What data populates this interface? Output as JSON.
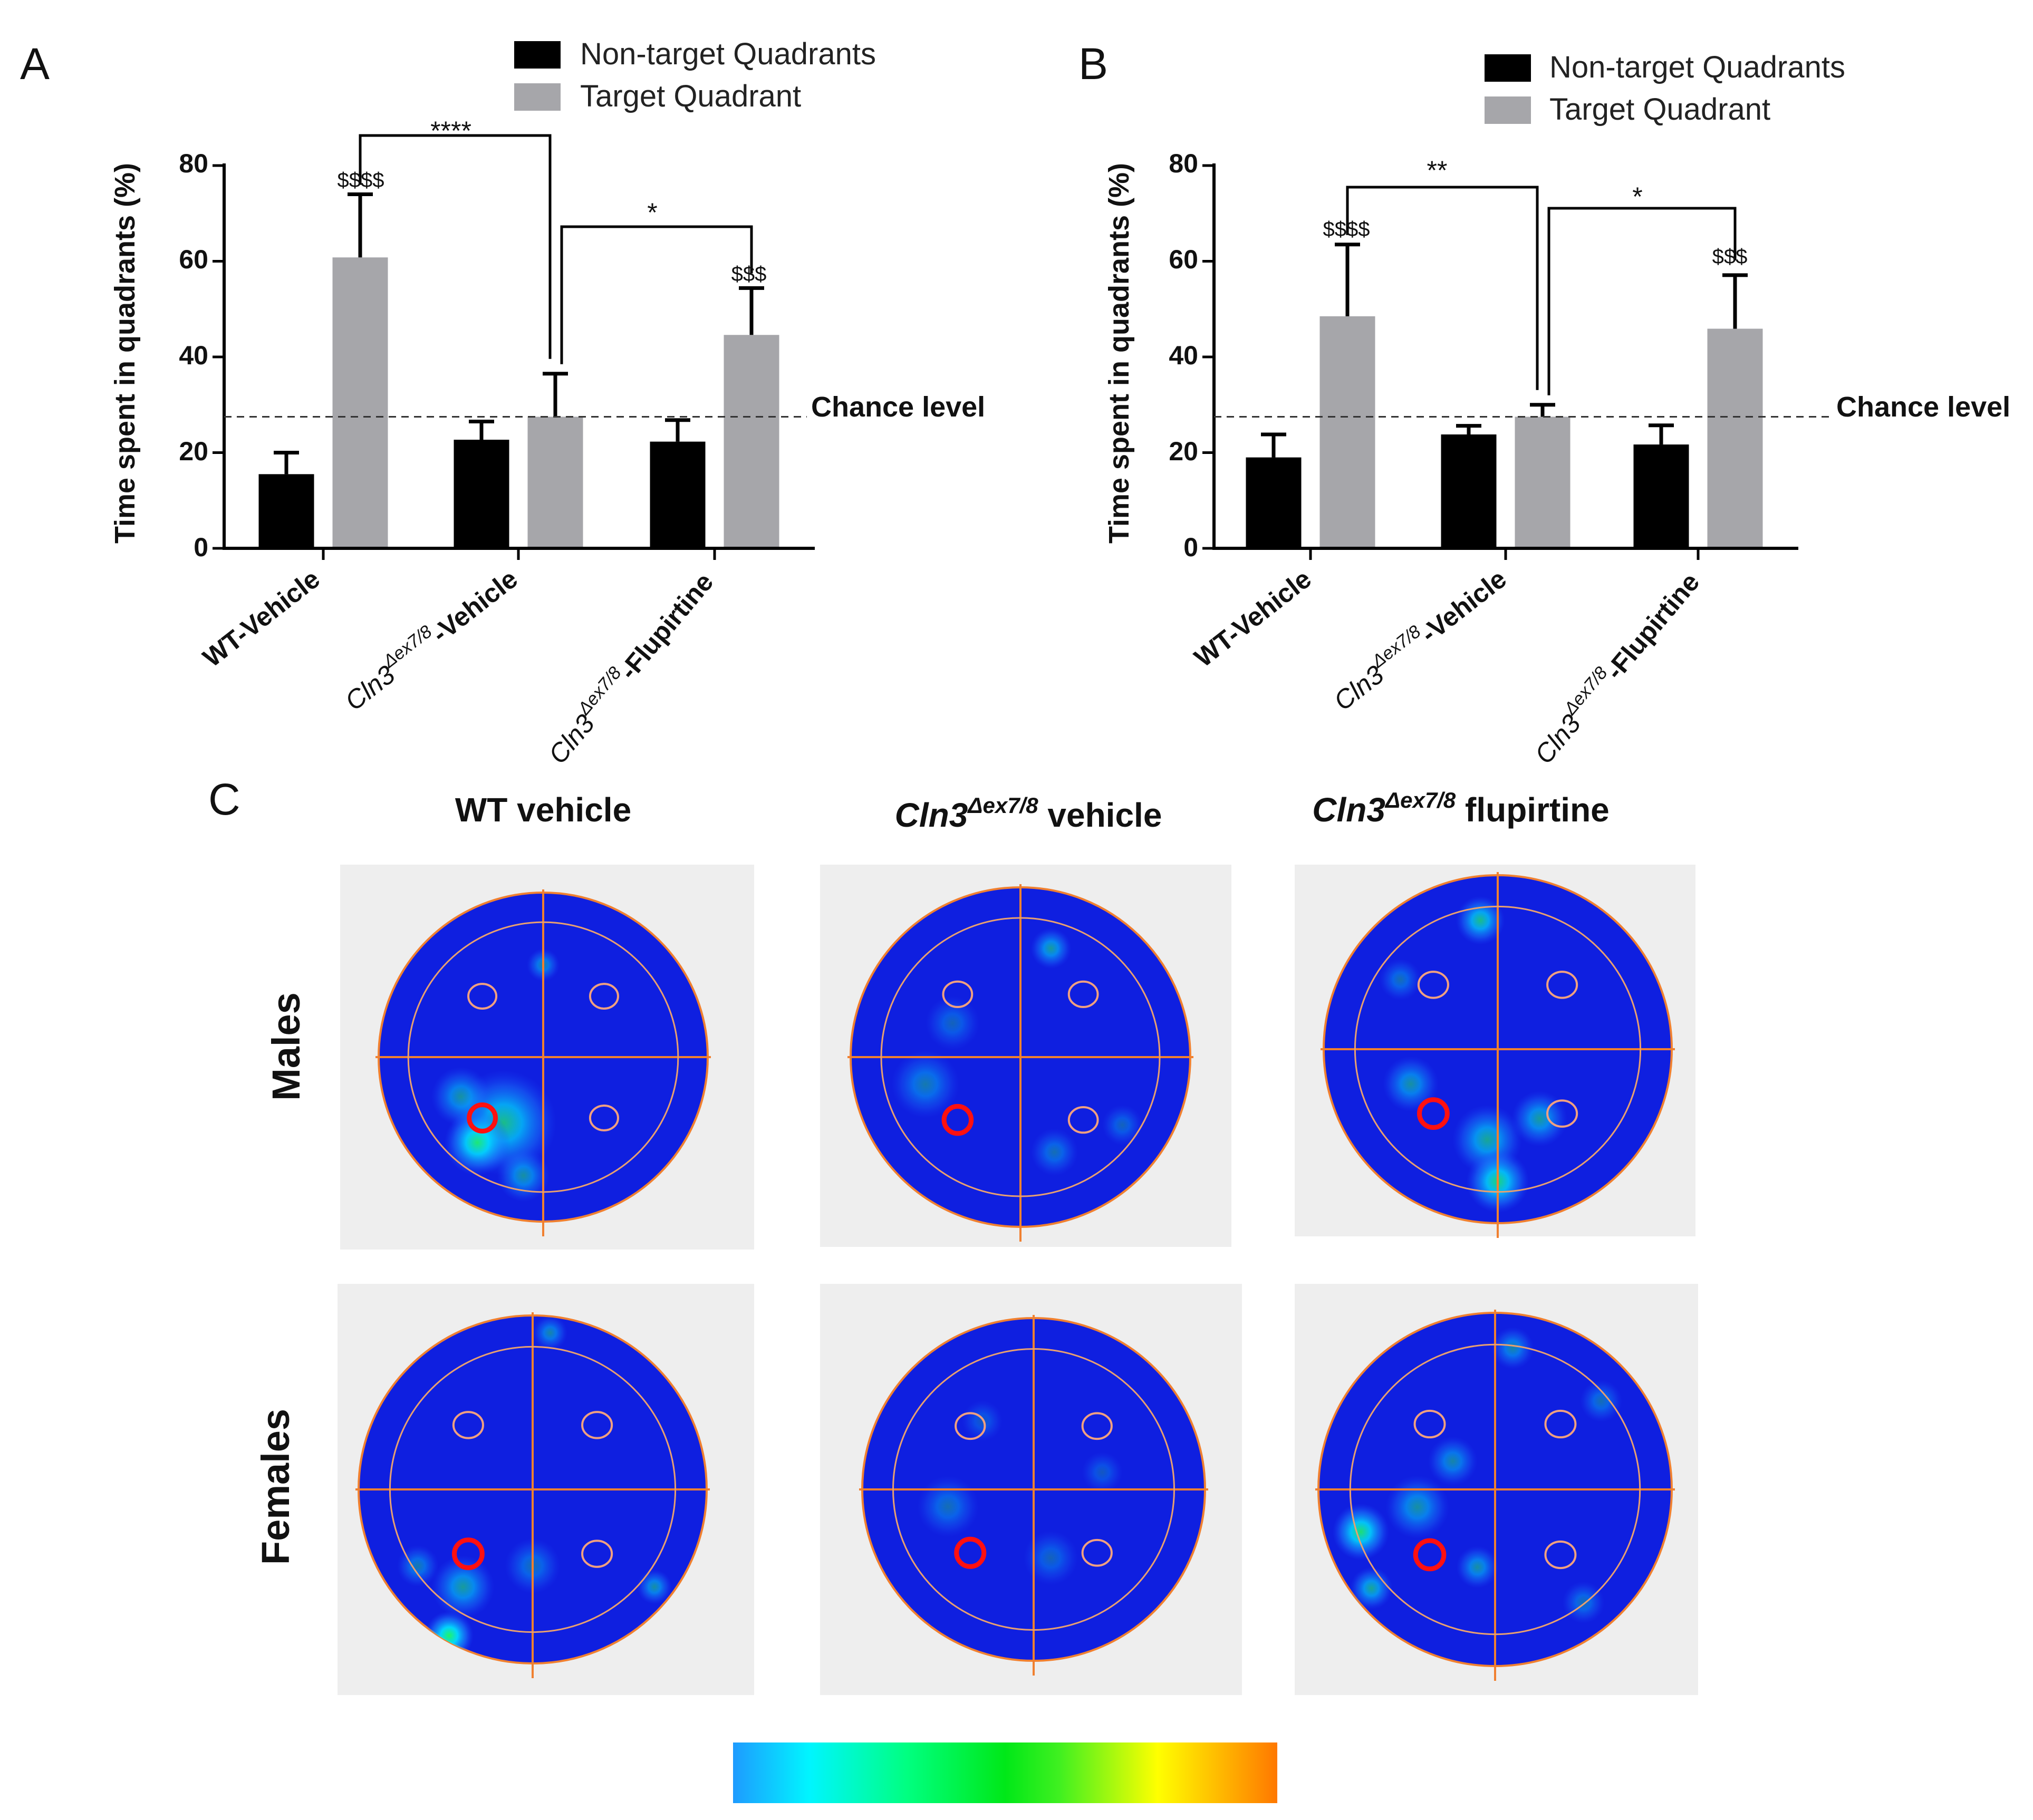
{
  "panels": [
    {
      "id": "A",
      "label": "A"
    },
    {
      "id": "B",
      "label": "B"
    },
    {
      "id": "C",
      "label": "C"
    }
  ],
  "chart_data": [
    {
      "panel": "A",
      "type": "bar",
      "ylabel": "Time spent in quadrants (%)",
      "ylim": [
        0,
        80
      ],
      "yticks": [
        "0",
        "20",
        "40",
        "60",
        "80"
      ],
      "categories": [
        "WT-Vehicle",
        "Cln3Δex7/8-Vehicle",
        "Cln3Δex7/8-Flupirtine"
      ],
      "category_parts": [
        {
          "gene": "WT",
          "super": "",
          "rest": "-Vehicle"
        },
        {
          "gene": "Cln3",
          "super": "Δex7/8",
          "rest": "-Vehicle"
        },
        {
          "gene": "Cln3",
          "super": "Δex7/8",
          "rest": "-Flupirtine"
        }
      ],
      "series": [
        {
          "name": "Non-target Quadrants",
          "color": "#000000",
          "values": [
            15.5,
            22.7,
            22.3
          ],
          "errors": [
            4.5,
            3.8,
            4.5
          ]
        },
        {
          "name": "Target Quadrant",
          "color": "#a6a6aa",
          "values": [
            60.8,
            27.5,
            44.6
          ],
          "errors": [
            13.2,
            9.0,
            9.8
          ]
        }
      ],
      "chance_level": 27.5,
      "chance_label": "Chance level",
      "annotations": [
        "$$$$",
        "",
        "$$$"
      ],
      "brackets": [
        {
          "from": 0,
          "to": 1,
          "label": "****"
        },
        {
          "from": 1,
          "to": 2,
          "label": "*"
        }
      ]
    },
    {
      "panel": "B",
      "type": "bar",
      "ylabel": "Time spent in quadrants (%)",
      "ylim": [
        0,
        80
      ],
      "yticks": [
        "0",
        "20",
        "40",
        "60",
        "80"
      ],
      "categories": [
        "WT-Vehicle",
        "Cln3Δex7/8-Vehicle",
        "Cln3Δex7/8-Flupirtine"
      ],
      "category_parts": [
        {
          "gene": "WT",
          "super": "",
          "rest": "-Vehicle"
        },
        {
          "gene": "Cln3",
          "super": "Δex7/8",
          "rest": "-Vehicle"
        },
        {
          "gene": "Cln3",
          "super": "Δex7/8",
          "rest": "-Flupirtine"
        }
      ],
      "series": [
        {
          "name": "Non-target Quadrants",
          "color": "#000000",
          "values": [
            19.0,
            23.8,
            21.7
          ],
          "errors": [
            4.8,
            1.8,
            4.0
          ]
        },
        {
          "name": "Target Quadrant",
          "color": "#a6a6aa",
          "values": [
            48.5,
            27.5,
            45.9
          ],
          "errors": [
            15.0,
            2.5,
            11.2
          ]
        }
      ],
      "chance_level": 27.5,
      "chance_label": "Chance level",
      "annotations": [
        "$$$$",
        "",
        "$$$"
      ],
      "brackets": [
        {
          "from": 0,
          "to": 1,
          "label": "**"
        },
        {
          "from": 1,
          "to": 2,
          "label": "*"
        }
      ]
    },
    {
      "panel": "C",
      "type": "heatmap",
      "columns": [
        {
          "gene": "WT",
          "super": "",
          "rest": " vehicle"
        },
        {
          "gene": "Cln3",
          "super": "Δex7/8",
          "rest": " vehicle"
        },
        {
          "gene": "Cln3",
          "super": "Δex7/8",
          "rest": " flupirtine"
        }
      ],
      "rows": [
        "Males",
        "Females"
      ],
      "colormap": [
        "#1ea0ff",
        "#00ffff",
        "#00ff40",
        "#00e000",
        "#80ff00",
        "#ffff00",
        "#ff8000"
      ],
      "pool_color": "#0f1fe0",
      "grid_color": "#f08030",
      "platform_color": "#ff1010",
      "spots": [
        [
          [
            [
              0.38,
              0.7,
              0.16,
              0.7
            ],
            [
              0.3,
              0.76,
              0.1,
              0.85
            ],
            [
              0.25,
              0.62,
              0.09,
              0.5
            ],
            [
              0.44,
              0.86,
              0.08,
              0.5
            ],
            [
              0.5,
              0.22,
              0.05,
              0.45
            ]
          ],
          [
            [
              0.59,
              0.18,
              0.06,
              0.55
            ],
            [
              0.22,
              0.58,
              0.1,
              0.4
            ],
            [
              0.3,
              0.4,
              0.08,
              0.3
            ],
            [
              0.6,
              0.78,
              0.07,
              0.35
            ],
            [
              0.8,
              0.7,
              0.06,
              0.3
            ]
          ],
          [
            [
              0.47,
              0.76,
              0.1,
              0.6
            ],
            [
              0.5,
              0.88,
              0.09,
              0.8
            ],
            [
              0.45,
              0.13,
              0.07,
              0.7
            ],
            [
              0.25,
              0.6,
              0.08,
              0.5
            ],
            [
              0.62,
              0.7,
              0.08,
              0.55
            ],
            [
              0.22,
              0.3,
              0.06,
              0.35
            ]
          ]
        ],
        [
          [
            [
              0.26,
              0.92,
              0.07,
              0.95
            ],
            [
              0.3,
              0.78,
              0.09,
              0.55
            ],
            [
              0.17,
              0.72,
              0.06,
              0.4
            ],
            [
              0.85,
              0.78,
              0.05,
              0.5
            ],
            [
              0.5,
              0.72,
              0.08,
              0.35
            ],
            [
              0.55,
              0.05,
              0.05,
              0.45
            ]
          ],
          [
            [
              0.25,
              0.55,
              0.09,
              0.35
            ],
            [
              0.55,
              0.7,
              0.08,
              0.3
            ],
            [
              0.35,
              0.3,
              0.06,
              0.25
            ],
            [
              0.7,
              0.45,
              0.06,
              0.25
            ]
          ],
          [
            [
              0.12,
              0.62,
              0.08,
              0.85
            ],
            [
              0.15,
              0.78,
              0.06,
              0.6
            ],
            [
              0.28,
              0.55,
              0.09,
              0.5
            ],
            [
              0.38,
              0.42,
              0.07,
              0.45
            ],
            [
              0.45,
              0.72,
              0.06,
              0.5
            ],
            [
              0.55,
              0.1,
              0.06,
              0.45
            ],
            [
              0.8,
              0.25,
              0.06,
              0.35
            ],
            [
              0.75,
              0.82,
              0.06,
              0.35
            ]
          ]
        ]
      ]
    }
  ]
}
